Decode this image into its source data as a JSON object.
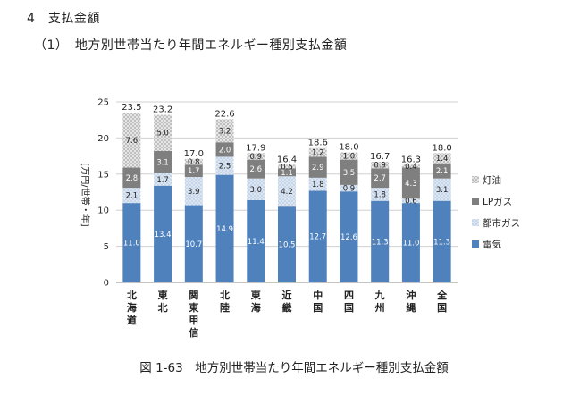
{
  "header": {
    "section": "4　支払金額",
    "subsection": "（1）　地方別世帯当たり年間エネルギー種別支払金額"
  },
  "caption": "図 1-63　地方別世帯当たり年間エネルギー種別支払金額",
  "chart_data": {
    "type": "bar",
    "stacked": true,
    "title": "",
    "ylabel": "[万円/世帯・年]",
    "xlabel": "",
    "ylim": [
      0,
      25
    ],
    "yticks": [
      0,
      5,
      10,
      15,
      20,
      25
    ],
    "grid": true,
    "legend_position": "right",
    "categories": [
      "北海道",
      "東北",
      "関東甲信",
      "北陸",
      "東海",
      "近畿",
      "中国",
      "四国",
      "九州",
      "沖縄",
      "全国"
    ],
    "series": [
      {
        "name": "電気",
        "color": "#4F81BD",
        "pattern": "solid",
        "values": [
          11.0,
          13.4,
          10.7,
          14.9,
          11.4,
          10.5,
          12.7,
          12.6,
          11.3,
          11.0,
          11.3
        ]
      },
      {
        "name": "都市ガス",
        "color": "#B8CCE4",
        "pattern": "dots",
        "values": [
          2.1,
          1.7,
          3.9,
          2.5,
          3.0,
          4.2,
          1.8,
          0.9,
          1.8,
          0.6,
          3.1
        ]
      },
      {
        "name": "LPガス",
        "color": "#7F7F7F",
        "pattern": "solid",
        "values": [
          2.8,
          3.1,
          1.7,
          2.0,
          2.6,
          1.1,
          2.9,
          3.5,
          2.7,
          4.3,
          2.1
        ]
      },
      {
        "name": "灯油",
        "color": "#D9D9D9",
        "pattern": "checker",
        "values": [
          7.6,
          5.0,
          0.8,
          3.2,
          0.9,
          0.5,
          1.2,
          1.0,
          0.9,
          0.4,
          1.4
        ]
      }
    ],
    "totals": [
      23.5,
      23.2,
      17.0,
      22.6,
      17.9,
      16.4,
      18.6,
      18.0,
      16.7,
      16.3,
      18.0
    ],
    "legend_order": [
      "灯油",
      "LPガス",
      "都市ガス",
      "電気"
    ]
  }
}
